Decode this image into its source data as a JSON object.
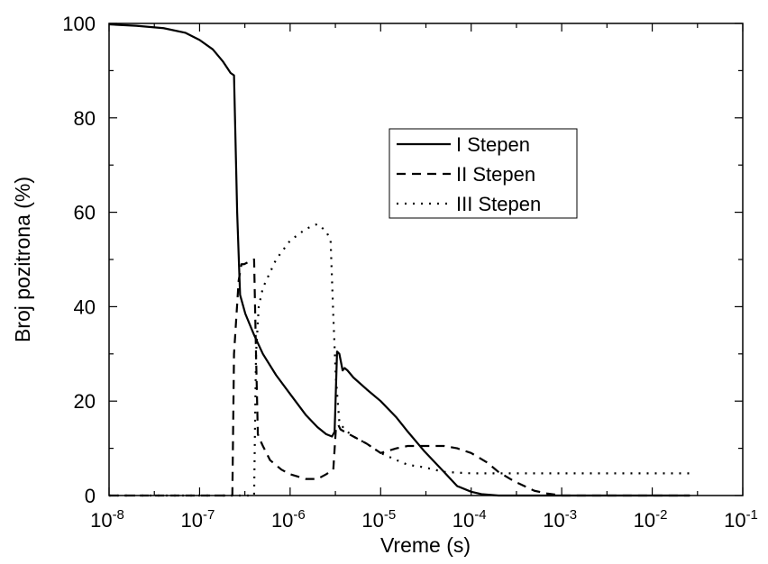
{
  "chart_data": {
    "type": "line",
    "title": "",
    "xlabel": "Vreme (s)",
    "ylabel": "Broj pozitrona (%)",
    "x_scale": "log",
    "xlim": [
      1e-08,
      0.1
    ],
    "ylim": [
      0,
      100
    ],
    "x_ticks": [
      {
        "value": 1e-08,
        "base": "10",
        "exp": "-8"
      },
      {
        "value": 1e-07,
        "base": "10",
        "exp": "-7"
      },
      {
        "value": 1e-06,
        "base": "10",
        "exp": "-6"
      },
      {
        "value": 1e-05,
        "base": "10",
        "exp": "-5"
      },
      {
        "value": 0.0001,
        "base": "10",
        "exp": "-4"
      },
      {
        "value": 0.001,
        "base": "10",
        "exp": "-3"
      },
      {
        "value": 0.01,
        "base": "10",
        "exp": "-2"
      },
      {
        "value": 0.1,
        "base": "10",
        "exp": "-1"
      }
    ],
    "y_ticks": [
      0,
      20,
      40,
      60,
      80,
      100
    ],
    "grid": false,
    "legend_position": "center-right",
    "series": [
      {
        "name": "I Stepen",
        "style": "solid",
        "x": [
          1e-08,
          2e-08,
          4e-08,
          7e-08,
          1e-07,
          1.4e-07,
          1.8e-07,
          2.2e-07,
          2.4e-07,
          2.6e-07,
          2.8e-07,
          3.2e-07,
          4e-07,
          5e-07,
          7e-07,
          1e-06,
          1.5e-06,
          2e-06,
          2.5e-06,
          2.9e-06,
          3.1e-06,
          3.3e-06,
          3.5e-06,
          3.8e-06,
          4e-06,
          4.3e-06,
          5e-06,
          7e-06,
          1e-05,
          1.5e-05,
          2e-05,
          3e-05,
          5e-05,
          7e-05,
          0.0001,
          0.00013,
          0.0002,
          0.0003,
          0.001,
          0.01,
          0.026
        ],
        "y": [
          99.8,
          99.5,
          99,
          98,
          96.5,
          94.5,
          92,
          89.5,
          89,
          60,
          42.5,
          38.5,
          34,
          30,
          25.5,
          21.5,
          17,
          14.5,
          13,
          12.5,
          13.5,
          30.5,
          30,
          26.5,
          27,
          26.5,
          25,
          22.5,
          20,
          16.5,
          13.5,
          9.5,
          5,
          2,
          0.8,
          0.3,
          0,
          0,
          0,
          0,
          0
        ]
      },
      {
        "name": "II Stepen",
        "style": "dashed",
        "x": [
          1e-08,
          1e-07,
          2.3e-07,
          2.4e-07,
          2.7e-07,
          2.9e-07,
          3.1e-07,
          3.5e-07,
          4e-07,
          4.2e-07,
          4.4e-07,
          4.6e-07,
          5e-07,
          6e-07,
          8e-07,
          1e-06,
          1.5e-06,
          2e-06,
          2.5e-06,
          3e-06,
          3.2e-06,
          3.4e-06,
          3.6e-06,
          4e-06,
          5e-06,
          7e-06,
          1e-05,
          1.5e-05,
          2e-05,
          3e-05,
          5e-05,
          7e-05,
          0.0001,
          0.00015,
          0.0002,
          0.0003,
          0.0005,
          0.0007,
          0.001,
          0.002,
          0.01,
          0.026
        ],
        "y": [
          0,
          0,
          0,
          30,
          45.5,
          49,
          49,
          49.5,
          50,
          30,
          13,
          12,
          10.5,
          7.5,
          5.5,
          4.5,
          3.5,
          3.5,
          4.5,
          5.5,
          14,
          15,
          14,
          13.5,
          12.5,
          11,
          9,
          10,
          10.5,
          10.5,
          10.5,
          10,
          9,
          7,
          5,
          3,
          1,
          0.4,
          0,
          0,
          0,
          0
        ]
      },
      {
        "name": "III Stepen",
        "style": "dotted",
        "x": [
          1e-08,
          1e-07,
          4e-07,
          4.2e-07,
          4.5e-07,
          5e-07,
          7e-07,
          1e-06,
          1.5e-06,
          2e-06,
          2.5e-06,
          2.8e-06,
          3e-06,
          3.2e-06,
          3.5e-06,
          4e-06,
          5e-06,
          7e-06,
          1e-05,
          1.5e-05,
          2e-05,
          3e-05,
          5e-05,
          0.0001,
          0.0002,
          0.001,
          0.01,
          0.026
        ],
        "y": [
          0,
          0,
          0,
          30,
          40,
          44,
          50,
          54,
          56.5,
          57.5,
          56,
          54,
          38,
          25,
          15.5,
          14,
          12.5,
          11,
          9,
          7.5,
          6.5,
          6,
          5,
          4.7,
          4.7,
          4.7,
          4.7,
          4.7
        ]
      }
    ]
  }
}
